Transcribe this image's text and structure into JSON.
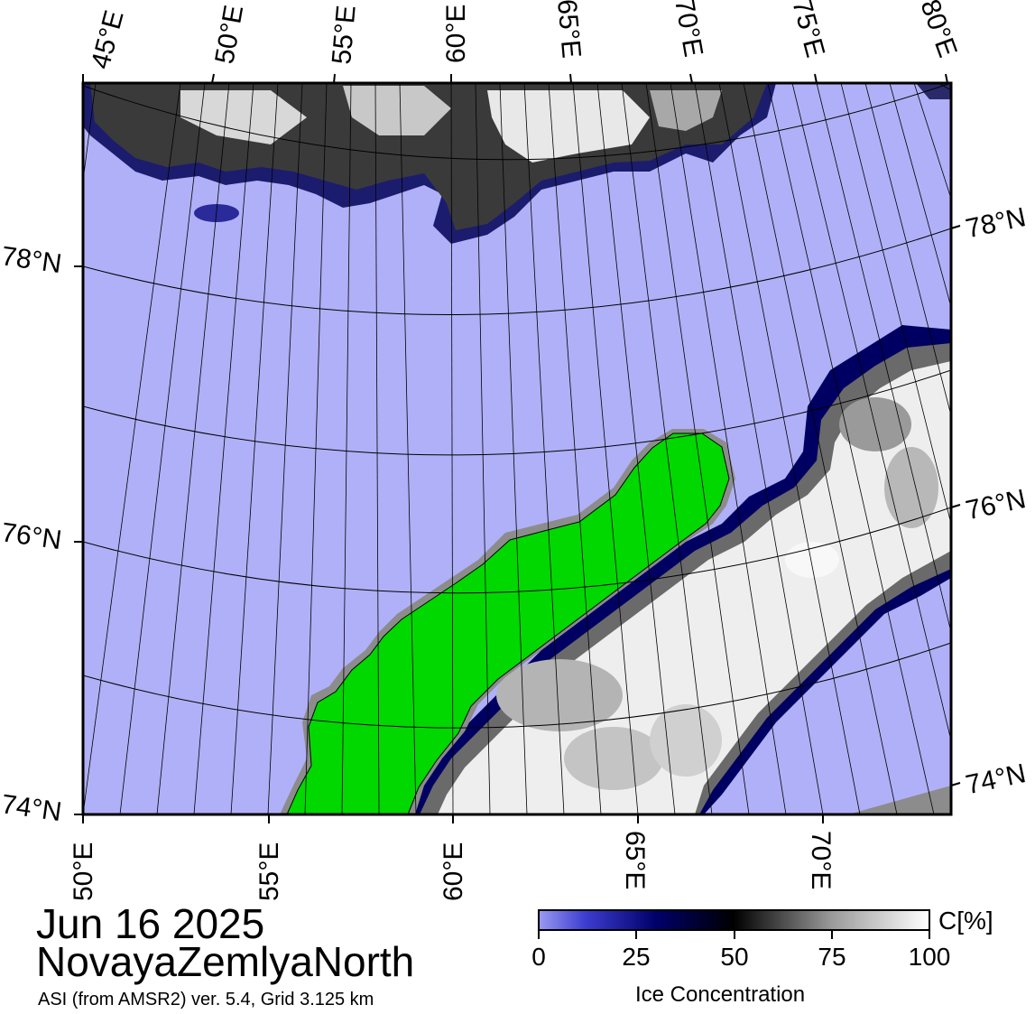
{
  "map": {
    "top_lon_labels": [
      "45°E",
      "50°E",
      "55°E",
      "60°E",
      "65°E",
      "70°E",
      "75°E",
      "80°E"
    ],
    "bottom_lon_labels": [
      "50°E",
      "55°E",
      "60°E",
      "65°E",
      "70°E"
    ],
    "left_lat_labels": [
      "78°N",
      "76°N",
      "74°N"
    ],
    "right_lat_labels": [
      "78°N",
      "76°N",
      "74°N"
    ],
    "colors": {
      "open_water": "#b0b0f8",
      "land": "#00d800",
      "land_mask": "#8c8c8c",
      "ice_edge": "#00006a",
      "ice_full": "#ffffff"
    }
  },
  "title": {
    "date": "Jun 16 2025",
    "region": "NovayaZemlyaNorth",
    "subtitle": "ASI (from AMSR2) ver. 5.4,  Grid 3.125 km"
  },
  "colorbar": {
    "unit": "C[%]",
    "title": "Ice Concentration",
    "ticks": [
      "0",
      "25",
      "50",
      "75",
      "100"
    ]
  }
}
